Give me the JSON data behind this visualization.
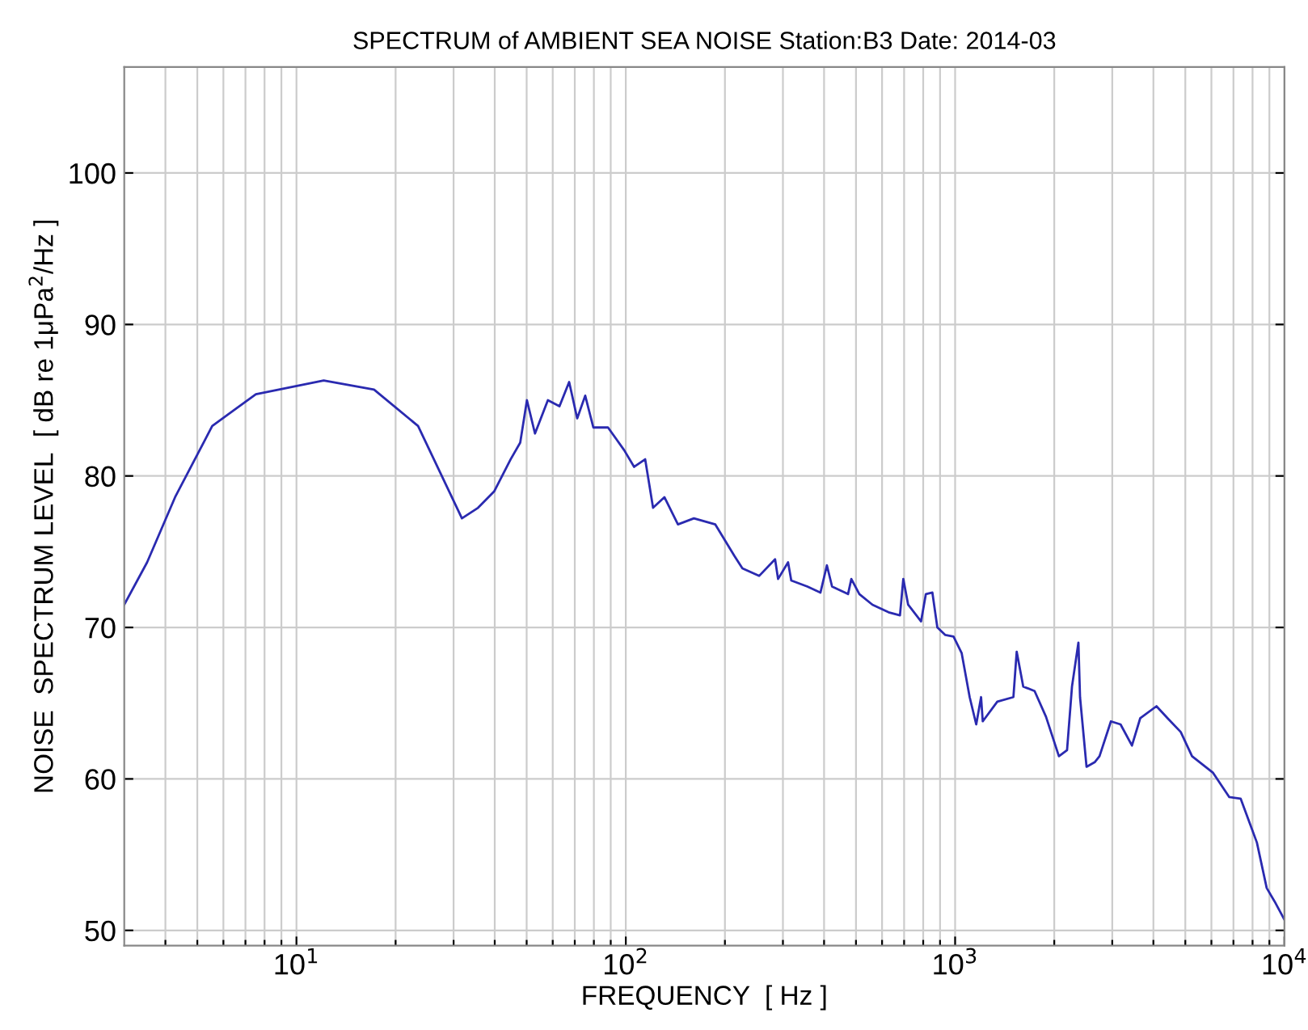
{
  "chart_data": {
    "type": "line",
    "title": "SPECTRUM of AMBIENT SEA NOISE Station:B3 Date: 2014-03",
    "xlabel": "FREQUENCY  [ Hz ]",
    "ylabel": "NOISE  SPECTRUM LEVEL  [ dB re 1μPa$^{2}$/Hz ]",
    "log": "x",
    "xlim": [
      3,
      10000
    ],
    "ylim": [
      49,
      107
    ],
    "grid": true,
    "marker": "none",
    "line_style": "solid",
    "xticks": [
      {
        "value": 4,
        "label": null
      },
      {
        "value": 5,
        "label": null
      },
      {
        "value": 6,
        "label": null
      },
      {
        "value": 7,
        "label": null
      },
      {
        "value": 8,
        "label": null
      },
      {
        "value": 9,
        "label": null
      },
      {
        "value": 10,
        "label": "10$^{1}$"
      },
      {
        "value": 20,
        "label": null
      },
      {
        "value": 30,
        "label": null
      },
      {
        "value": 40,
        "label": null
      },
      {
        "value": 50,
        "label": null
      },
      {
        "value": 60,
        "label": null
      },
      {
        "value": 70,
        "label": null
      },
      {
        "value": 80,
        "label": null
      },
      {
        "value": 90,
        "label": null
      },
      {
        "value": 100,
        "label": "10$^{2}$"
      },
      {
        "value": 200,
        "label": null
      },
      {
        "value": 300,
        "label": null
      },
      {
        "value": 400,
        "label": null
      },
      {
        "value": 500,
        "label": null
      },
      {
        "value": 600,
        "label": null
      },
      {
        "value": 700,
        "label": null
      },
      {
        "value": 800,
        "label": null
      },
      {
        "value": 900,
        "label": null
      },
      {
        "value": 1000,
        "label": "10$^{3}$"
      },
      {
        "value": 2000,
        "label": null
      },
      {
        "value": 3000,
        "label": null
      },
      {
        "value": 4000,
        "label": null
      },
      {
        "value": 5000,
        "label": null
      },
      {
        "value": 6000,
        "label": null
      },
      {
        "value": 7000,
        "label": null
      },
      {
        "value": 8000,
        "label": null
      },
      {
        "value": 9000,
        "label": null
      },
      {
        "value": 10000,
        "label": "10$^{4}$"
      }
    ],
    "yticks": [
      50,
      60,
      70,
      80,
      90,
      100
    ],
    "series": [
      {
        "color": "#2a2ab0",
        "x": [
          3.0,
          3.52,
          4.28,
          5.55,
          7.53,
          12.1,
          17.2,
          23.4,
          31.8,
          35.6,
          39.9,
          44.7,
          47.8,
          50.1,
          53.0,
          58.0,
          62.9,
          67.3,
          71.2,
          75.3,
          79.7,
          88.3,
          98.9,
          106,
          114.5,
          121,
          131,
          144,
          161,
          187,
          214,
          226,
          254,
          284,
          290,
          311,
          318,
          356,
          390,
          408,
          423,
          473,
          484,
          512,
          561,
          628,
          680,
          696,
          720,
          788,
          815,
          853,
          883,
          934,
          989,
          1047,
          1107,
          1159,
          1199,
          1213,
          1343,
          1503,
          1538,
          1610,
          1743,
          1888,
          2066,
          2187,
          2264,
          2368,
          2395,
          2506,
          2653,
          2744,
          2972,
          3179,
          3443,
          3647,
          4087,
          4420,
          4842,
          5241,
          6072,
          6801,
          7361,
          8247,
          8832,
          9340,
          10000
        ],
        "values": [
          71.5,
          74.3,
          78.6,
          83.3,
          85.4,
          86.3,
          85.7,
          83.3,
          77.2,
          77.9,
          79.0,
          81.1,
          82.2,
          85.0,
          82.8,
          85.0,
          84.6,
          86.2,
          83.8,
          85.3,
          83.2,
          83.2,
          81.7,
          80.6,
          81.1,
          77.9,
          78.6,
          76.8,
          77.2,
          76.8,
          74.7,
          73.9,
          73.4,
          74.5,
          73.2,
          74.3,
          73.1,
          72.7,
          72.3,
          74.1,
          72.7,
          72.2,
          73.2,
          72.2,
          71.5,
          71.0,
          70.8,
          73.2,
          71.5,
          70.4,
          72.2,
          72.3,
          70.0,
          69.5,
          69.4,
          68.3,
          65.4,
          63.6,
          65.4,
          63.8,
          65.1,
          65.4,
          68.4,
          66.1,
          65.8,
          64.1,
          61.5,
          61.9,
          66.1,
          69.0,
          65.4,
          60.8,
          61.1,
          61.5,
          63.8,
          63.6,
          62.2,
          64.0,
          64.8,
          64.0,
          63.1,
          61.5,
          60.4,
          58.8,
          58.7,
          55.8,
          52.8,
          51.9,
          50.7
        ]
      }
    ]
  }
}
